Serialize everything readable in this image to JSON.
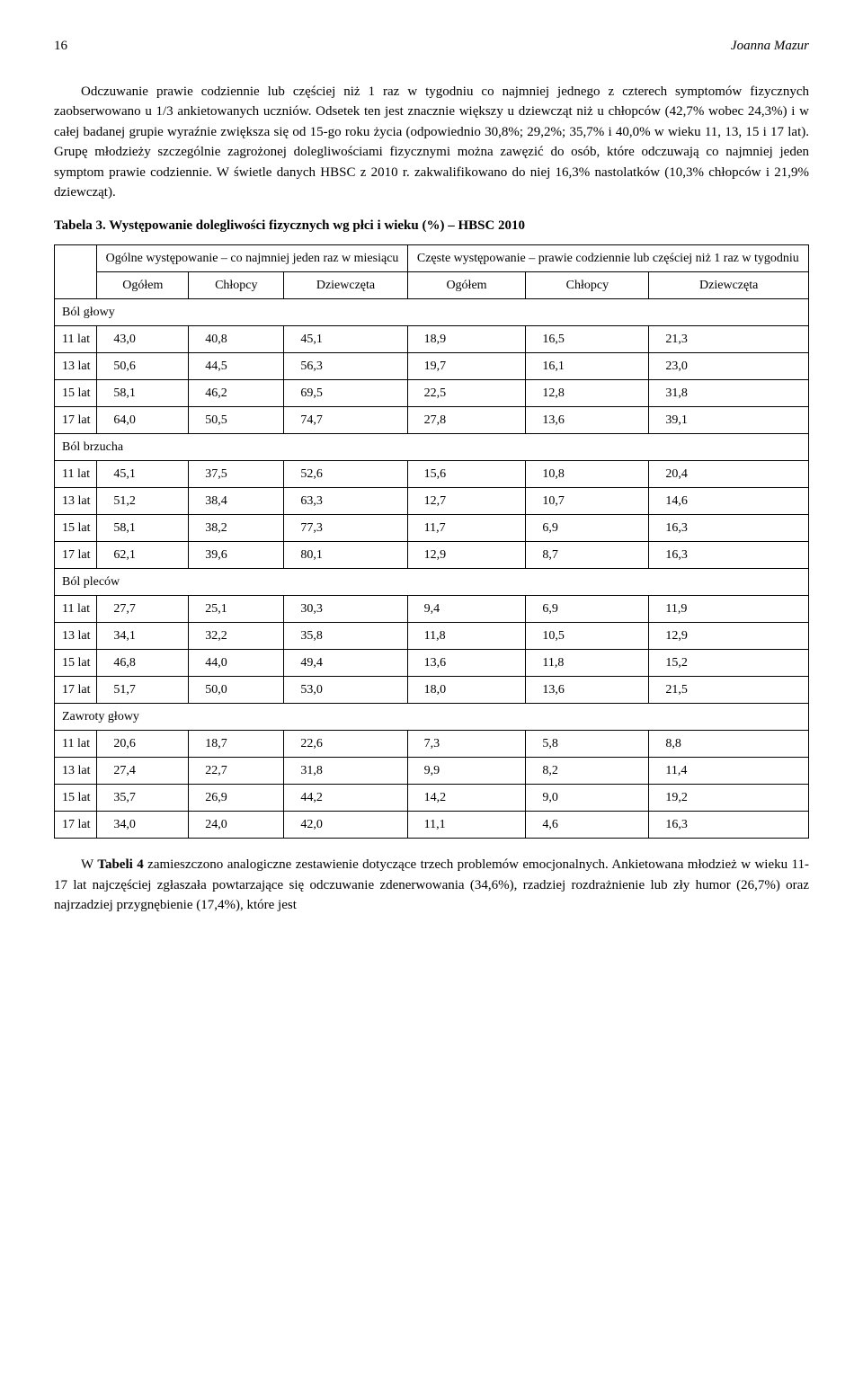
{
  "page_number": "16",
  "running_head": "Joanna Mazur",
  "para1": "Odczuwanie prawie codziennie lub częściej niż 1 raz w tygodniu co najmniej jednego z czterech symptomów fizycznych zaobserwowano u 1/3 ankietowanych uczniów. Odsetek ten jest znacznie większy u dziewcząt niż u chłopców (42,7% wobec 24,3%) i w całej badanej grupie wyraźnie zwiększa się od 15-go roku życia (odpowiednio 30,8%; 29,2%; 35,7% i 40,0% w wieku 11, 13, 15 i 17 lat). Grupę młodzieży szczególnie zagrożonej dolegliwościami fizycznymi można zawęzić do osób, które odczuwają co najmniej jeden symptom prawie codziennie. W świetle danych HBSC z 2010 r. zakwalifikowano do niej 16,3% nastolatków (10,3% chłopców i 21,9% dziewcząt).",
  "table_title": "Tabela 3. Występowanie dolegliwości fizycznych wg płci i wieku (%) – HBSC 2010",
  "table": {
    "group1_label": "Ogólne występowanie – co najmniej jeden raz w miesiącu",
    "group2_label": "Częste występowanie – prawie codziennie lub częściej niż 1 raz w tygodniu",
    "col_labels": [
      "Ogółem",
      "Chłopcy",
      "Dziewczęta",
      "Ogółem",
      "Chłopcy",
      "Dziewczęta"
    ],
    "sections": [
      {
        "name": "Ból głowy",
        "rows": [
          {
            "age": "11 lat",
            "v": [
              "43,0",
              "40,8",
              "45,1",
              "18,9",
              "16,5",
              "21,3"
            ]
          },
          {
            "age": "13 lat",
            "v": [
              "50,6",
              "44,5",
              "56,3",
              "19,7",
              "16,1",
              "23,0"
            ]
          },
          {
            "age": "15 lat",
            "v": [
              "58,1",
              "46,2",
              "69,5",
              "22,5",
              "12,8",
              "31,8"
            ]
          },
          {
            "age": "17 lat",
            "v": [
              "64,0",
              "50,5",
              "74,7",
              "27,8",
              "13,6",
              "39,1"
            ]
          }
        ]
      },
      {
        "name": "Ból brzucha",
        "rows": [
          {
            "age": "11 lat",
            "v": [
              "45,1",
              "37,5",
              "52,6",
              "15,6",
              "10,8",
              "20,4"
            ]
          },
          {
            "age": "13 lat",
            "v": [
              "51,2",
              "38,4",
              "63,3",
              "12,7",
              "10,7",
              "14,6"
            ]
          },
          {
            "age": "15 lat",
            "v": [
              "58,1",
              "38,2",
              "77,3",
              "11,7",
              "6,9",
              "16,3"
            ]
          },
          {
            "age": "17 lat",
            "v": [
              "62,1",
              "39,6",
              "80,1",
              "12,9",
              "8,7",
              "16,3"
            ]
          }
        ]
      },
      {
        "name": "Ból pleców",
        "rows": [
          {
            "age": "11 lat",
            "v": [
              "27,7",
              "25,1",
              "30,3",
              "9,4",
              "6,9",
              "11,9"
            ]
          },
          {
            "age": "13 lat",
            "v": [
              "34,1",
              "32,2",
              "35,8",
              "11,8",
              "10,5",
              "12,9"
            ]
          },
          {
            "age": "15 lat",
            "v": [
              "46,8",
              "44,0",
              "49,4",
              "13,6",
              "11,8",
              "15,2"
            ]
          },
          {
            "age": "17 lat",
            "v": [
              "51,7",
              "50,0",
              "53,0",
              "18,0",
              "13,6",
              "21,5"
            ]
          }
        ]
      },
      {
        "name": "Zawroty głowy",
        "rows": [
          {
            "age": "11 lat",
            "v": [
              "20,6",
              "18,7",
              "22,6",
              "7,3",
              "5,8",
              "8,8"
            ]
          },
          {
            "age": "13 lat",
            "v": [
              "27,4",
              "22,7",
              "31,8",
              "9,9",
              "8,2",
              "11,4"
            ]
          },
          {
            "age": "15 lat",
            "v": [
              "35,7",
              "26,9",
              "44,2",
              "14,2",
              "9,0",
              "19,2"
            ]
          },
          {
            "age": "17 lat",
            "v": [
              "34,0",
              "24,0",
              "42,0",
              "11,1",
              "4,6",
              "16,3"
            ]
          }
        ]
      }
    ]
  },
  "para2_prefix": "W ",
  "para2_bold": "Tabeli 4",
  "para2_rest": " zamieszczono analogiczne zestawienie dotyczące trzech problemów emocjonalnych. Ankietowana młodzież w wieku 11-17 lat najczęściej zgłaszała powtarzające się odczuwanie zdenerwowania (34,6%), rzadziej rozdrażnienie lub zły humor (26,7%) oraz najrzadziej przygnębienie (17,4%), które jest"
}
